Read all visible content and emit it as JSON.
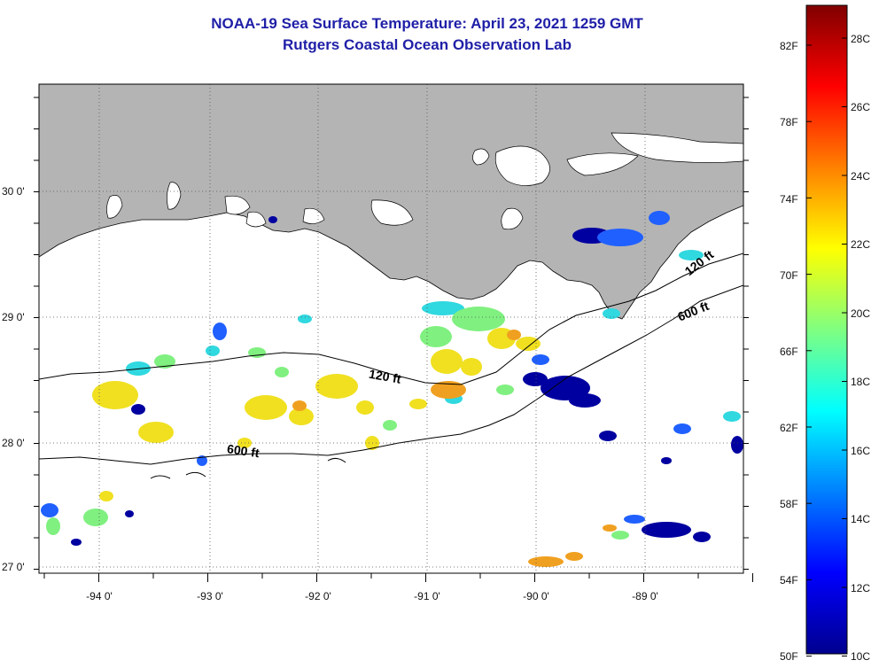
{
  "title": {
    "line1": "NOAA-19 Sea Surface Temperature:  April 23, 2021 1259 GMT",
    "line2": "Rutgers Coastal Ocean Observation Lab"
  },
  "map": {
    "lon_ticks": [
      "-94 0'",
      "-93 0'",
      "-92 0'",
      "-91 0'",
      "-90 0'",
      "-89 0'"
    ],
    "lat_ticks": [
      "30 0'",
      "29 0'",
      "28 0'",
      "27 0'"
    ],
    "land_color": "#b4b4b4",
    "contour_labels": [
      "120 ft",
      "600 ft",
      "120 ft",
      "600 ft"
    ]
  },
  "colorbar": {
    "fahrenheit": [
      "82F",
      "78F",
      "74F",
      "70F",
      "66F",
      "62F",
      "58F",
      "54F",
      "50F"
    ],
    "celsius": [
      "28C",
      "26C",
      "24C",
      "22C",
      "20C",
      "18C",
      "16C",
      "14C",
      "12C",
      "10C"
    ],
    "colors": [
      "#00008f",
      "#0000ff",
      "#0080ff",
      "#00ffff",
      "#80ff80",
      "#ffff00",
      "#ff8000",
      "#ff0000",
      "#800000"
    ]
  }
}
